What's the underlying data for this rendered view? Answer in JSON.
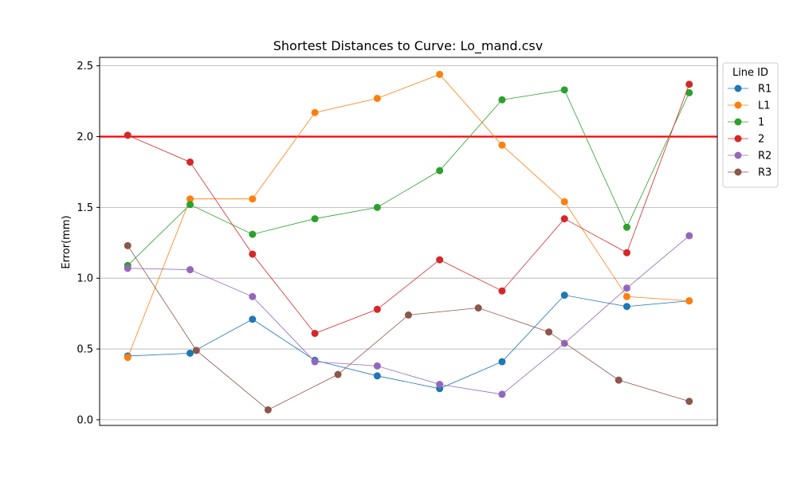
{
  "chart_data": {
    "type": "line",
    "title": "Shortest Distances to Curve: Lo_mand.csv",
    "xlabel": "",
    "ylabel": "Error(mm)",
    "ylim": [
      -0.04,
      2.56
    ],
    "yticks": [
      0.0,
      0.5,
      1.0,
      1.5,
      2.0,
      2.5
    ],
    "ytick_labels": [
      "0.0",
      "0.5",
      "1.0",
      "1.5",
      "2.0",
      "2.5"
    ],
    "grid": "horizontal",
    "threshold": {
      "value": 2.0,
      "color": "#ff0000"
    },
    "legend": {
      "title": "Line ID",
      "placement": "outside-right-top"
    },
    "series": [
      {
        "name": "R1",
        "color": "#1f77b4",
        "x": [
          0,
          1,
          2,
          3,
          4,
          5,
          6,
          7,
          8,
          9
        ],
        "values": [
          0.45,
          0.47,
          0.71,
          0.42,
          0.31,
          0.22,
          0.41,
          0.88,
          0.8,
          0.84
        ]
      },
      {
        "name": "L1",
        "color": "#ff7f0e",
        "x": [
          0,
          1,
          2,
          3,
          4,
          5,
          6,
          7,
          8,
          9
        ],
        "values": [
          0.44,
          1.56,
          1.56,
          2.17,
          2.27,
          2.44,
          1.94,
          1.54,
          0.87,
          0.84
        ]
      },
      {
        "name": "1",
        "color": "#2ca02c",
        "x": [
          0,
          1,
          2,
          3,
          4,
          5,
          6,
          7,
          8,
          9
        ],
        "values": [
          1.09,
          1.52,
          1.31,
          1.42,
          1.5,
          1.76,
          2.26,
          2.33,
          1.36,
          2.31
        ]
      },
      {
        "name": "2",
        "color": "#d62728",
        "x": [
          0,
          1,
          2,
          3,
          4,
          5,
          6,
          7,
          8,
          9
        ],
        "values": [
          2.01,
          1.82,
          1.17,
          0.61,
          0.78,
          1.13,
          0.91,
          1.42,
          1.18,
          2.37
        ]
      },
      {
        "name": "R2",
        "color": "#9467bd",
        "x": [
          0,
          1,
          2,
          3,
          4,
          5,
          6,
          7,
          8,
          9
        ],
        "values": [
          1.07,
          1.06,
          0.87,
          0.41,
          0.38,
          0.25,
          0.18,
          0.54,
          0.93,
          1.3
        ]
      },
      {
        "name": "R3",
        "color": "#8c564b",
        "x": [
          0,
          1.1,
          2.25,
          3.37,
          4.5,
          5.62,
          6.75,
          7.87,
          9.0
        ],
        "values": [
          1.23,
          0.49,
          0.07,
          0.32,
          0.74,
          0.79,
          0.62,
          0.28,
          0.13
        ]
      }
    ]
  }
}
